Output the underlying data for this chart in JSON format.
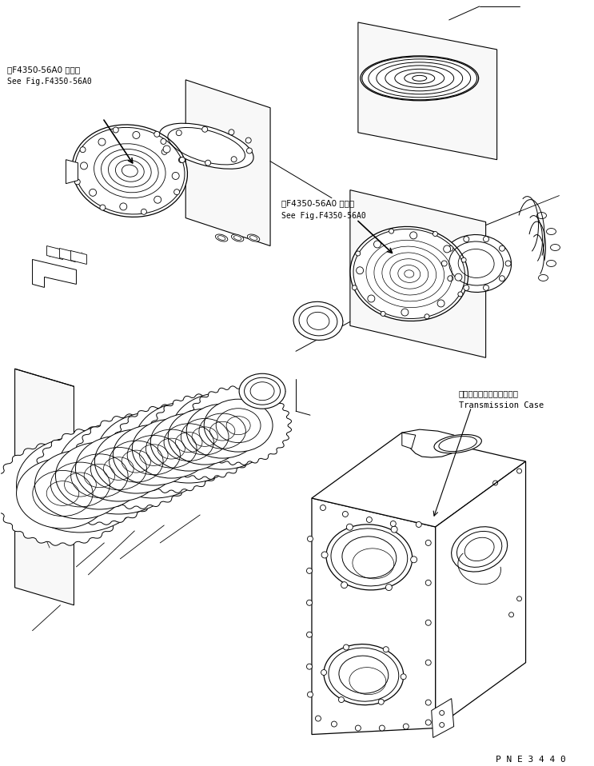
{
  "bg": "#ffffff",
  "lc": "#000000",
  "fw": 7.43,
  "fh": 9.58,
  "dpi": 100,
  "label1_jp": "第F4350-56A0 図参照",
  "label1_en": "See Fig.F4350-56A0",
  "label2_jp": "第F4350-56A0 図参照",
  "label2_en": "See Fig.F4350-56A0",
  "label3_jp": "トランスミッションケース",
  "label3_en": "Transmission Case",
  "part_number": "P N E 3 4 4 0"
}
